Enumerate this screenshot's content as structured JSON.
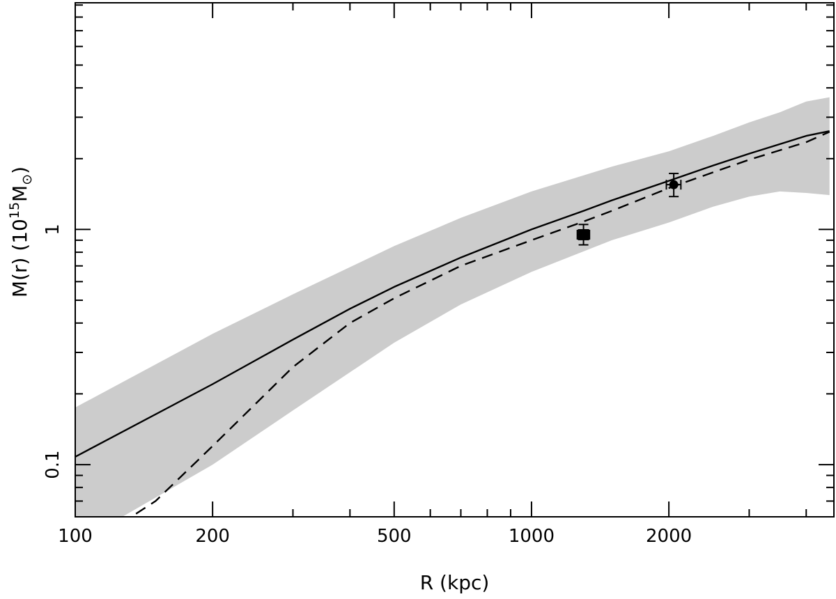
{
  "chart_data": {
    "type": "line",
    "title": "",
    "xlabel": "R (kpc)",
    "ylabel": {
      "prefix": "M(r)  (10",
      "exponent": "15",
      "unit": "M",
      "subscript": "⊙",
      "suffix": ")"
    },
    "x_scale": "log",
    "y_scale": "log",
    "xlim": [
      100,
      4600
    ],
    "ylim": [
      0.06,
      9.2
    ],
    "x_major_ticks": [
      100,
      200,
      500,
      1000,
      2000
    ],
    "x_tick_labels": [
      "100",
      "200",
      "500",
      "1000",
      "2000"
    ],
    "y_major_ticks": [
      0.1,
      1
    ],
    "y_tick_labels": [
      "0.1",
      "1"
    ],
    "grid": false,
    "legend": "none",
    "series": [
      {
        "style": "solid",
        "color": "#000000",
        "x": [
          100,
          200,
          300,
          400,
          500,
          700,
          1000,
          1300,
          1500,
          2000,
          2500,
          3000,
          4000,
          4500
        ],
        "y": [
          0.108,
          0.22,
          0.34,
          0.46,
          0.57,
          0.76,
          1.0,
          1.2,
          1.33,
          1.61,
          1.87,
          2.1,
          2.5,
          2.62
        ]
      },
      {
        "style": "dashed",
        "color": "#000000",
        "x": [
          100,
          150,
          200,
          300,
          400,
          500,
          700,
          1000,
          1300,
          1500,
          2000,
          2500,
          3000,
          4000,
          4500
        ],
        "y": [
          0.042,
          0.07,
          0.12,
          0.26,
          0.4,
          0.51,
          0.7,
          0.9,
          1.08,
          1.2,
          1.5,
          1.75,
          1.98,
          2.35,
          2.6
        ]
      }
    ],
    "band": {
      "color": "#cccccc",
      "x": [
        100,
        200,
        300,
        500,
        700,
        1000,
        1500,
        2000,
        2500,
        3000,
        3500,
        4000,
        4500
      ],
      "upper": [
        0.175,
        0.36,
        0.53,
        0.85,
        1.12,
        1.45,
        1.85,
        2.15,
        2.5,
        2.85,
        3.15,
        3.5,
        3.65
      ],
      "lower": [
        0.046,
        0.1,
        0.17,
        0.33,
        0.48,
        0.66,
        0.9,
        1.07,
        1.25,
        1.38,
        1.45,
        1.43,
        1.4
      ]
    },
    "points": [
      {
        "marker": "square",
        "x": 1300,
        "y": 0.95,
        "xerr": [
          1260,
          1340
        ],
        "yerr": [
          0.86,
          1.05
        ]
      },
      {
        "marker": "circle",
        "x": 2050,
        "y": 1.55,
        "xerr": [
          1975,
          2125
        ],
        "yerr": [
          1.38,
          1.73
        ]
      }
    ]
  }
}
